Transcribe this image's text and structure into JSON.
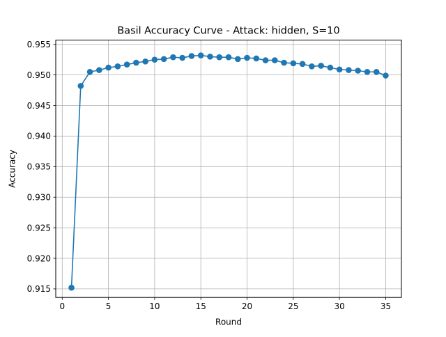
{
  "chart_data": {
    "type": "line",
    "title": "Basil Accuracy Curve - Attack: hidden, S=10",
    "xlabel": "Round",
    "ylabel": "Accuracy",
    "xlim": [
      -0.7,
      36.7
    ],
    "ylim": [
      0.9136,
      0.9557
    ],
    "xticks": [
      0,
      5,
      10,
      15,
      20,
      25,
      30,
      35
    ],
    "yticks": [
      0.915,
      0.92,
      0.925,
      0.93,
      0.935,
      0.94,
      0.945,
      0.95,
      0.955
    ],
    "ytick_labels": [
      "0.915",
      "0.920",
      "0.925",
      "0.930",
      "0.935",
      "0.940",
      "0.945",
      "0.950",
      "0.955"
    ],
    "grid": true,
    "series": [
      {
        "color": "#1f77b4",
        "marker": "circle",
        "x": [
          1,
          2,
          3,
          4,
          5,
          6,
          7,
          8,
          9,
          10,
          11,
          12,
          13,
          14,
          15,
          16,
          17,
          18,
          19,
          20,
          21,
          22,
          23,
          24,
          25,
          26,
          27,
          28,
          29,
          30,
          31,
          32,
          33,
          34,
          35
        ],
        "values": [
          0.9152,
          0.9482,
          0.9505,
          0.9508,
          0.9512,
          0.9514,
          0.9517,
          0.952,
          0.9522,
          0.9525,
          0.9526,
          0.9529,
          0.9528,
          0.9531,
          0.9532,
          0.953,
          0.9529,
          0.9529,
          0.9526,
          0.9528,
          0.9527,
          0.9524,
          0.9524,
          0.952,
          0.9519,
          0.9518,
          0.9514,
          0.9515,
          0.9512,
          0.9509,
          0.9508,
          0.9507,
          0.9505,
          0.9505,
          0.9499
        ]
      }
    ]
  }
}
